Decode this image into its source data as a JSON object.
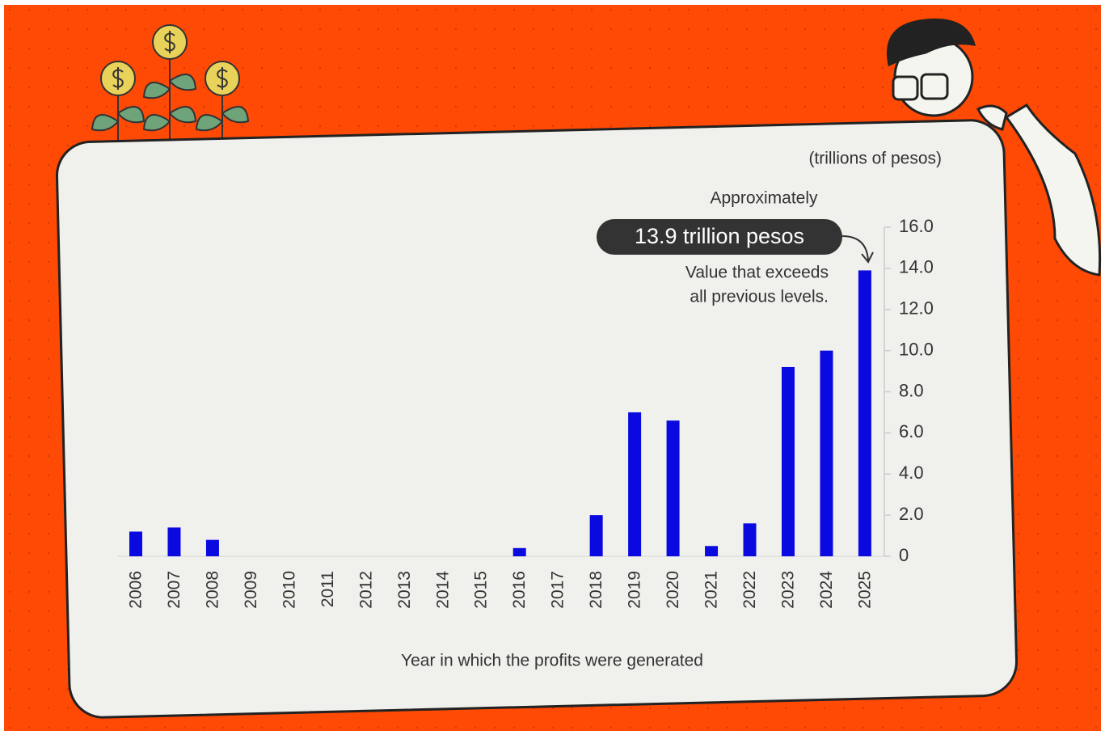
{
  "chart_data": {
    "type": "bar",
    "unit_label": "(trillions of pesos)",
    "x_label": "Year in which the profits were generated",
    "annotation": {
      "prefix": "Approximately",
      "highlight": "13.9 trillion pesos",
      "note_lines": [
        "Value that exceeds",
        "all previous levels."
      ]
    },
    "categories": [
      "2006",
      "2007",
      "2008",
      "2009",
      "2010",
      "2011",
      "2012",
      "2013",
      "2014",
      "2015",
      "2016",
      "2017",
      "2018",
      "2019",
      "2020",
      "2021",
      "2022",
      "2023",
      "2024",
      "2025"
    ],
    "values": [
      1.2,
      1.4,
      0.8,
      0,
      0,
      0,
      0,
      0,
      0,
      0,
      0.4,
      0,
      2.0,
      7.0,
      6.6,
      0.5,
      1.6,
      9.2,
      10.0,
      13.9
    ],
    "color": "#0a0ae0",
    "ylim": [
      0,
      16
    ],
    "yticks": [
      0,
      {
        "value": 2,
        "label": "2.0"
      },
      {
        "value": 4,
        "label": "4.0"
      },
      {
        "value": 6,
        "label": "6.0"
      },
      {
        "value": 8,
        "label": "8.0"
      },
      {
        "value": 10,
        "label": "10.0"
      },
      {
        "value": 12,
        "label": "12.0"
      },
      {
        "value": 14,
        "label": "14.0"
      },
      {
        "value": 16,
        "label": "16.0"
      }
    ],
    "grid": false
  }
}
